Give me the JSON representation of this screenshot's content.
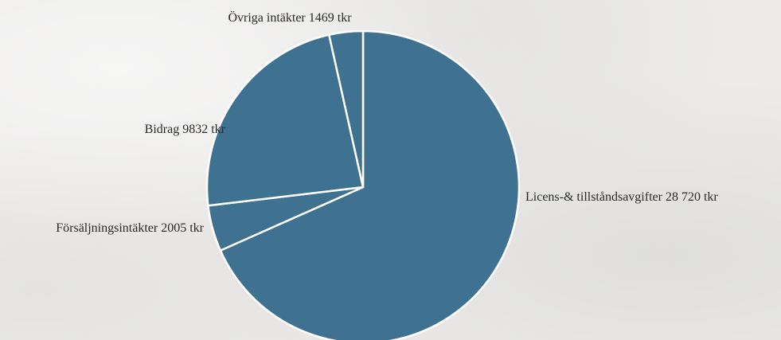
{
  "chart_data": {
    "type": "pie",
    "title": "",
    "slices": [
      {
        "name": "Licens-& tillståndsavgifter",
        "value": 28720,
        "label": "Licens-& tillståndsavgifter  28 720 tkr"
      },
      {
        "name": "Försäljningsintäkter",
        "value": 2005,
        "label": "Försäljningsintäkter  2005 tkr"
      },
      {
        "name": "Bidrag",
        "value": 9832,
        "label": "Bidrag  9832 tkr"
      },
      {
        "name": "Övriga intäkter",
        "value": 1469,
        "label": "Övriga intäkter  1469 tkr"
      }
    ],
    "unit": "tkr",
    "start": "12 o'clock",
    "direction": "clockwise",
    "legend": "none",
    "colors": {
      "slice_fill": "#3f7190",
      "slice_border": "#ffffff",
      "label_text": "#2a2a2a"
    }
  }
}
